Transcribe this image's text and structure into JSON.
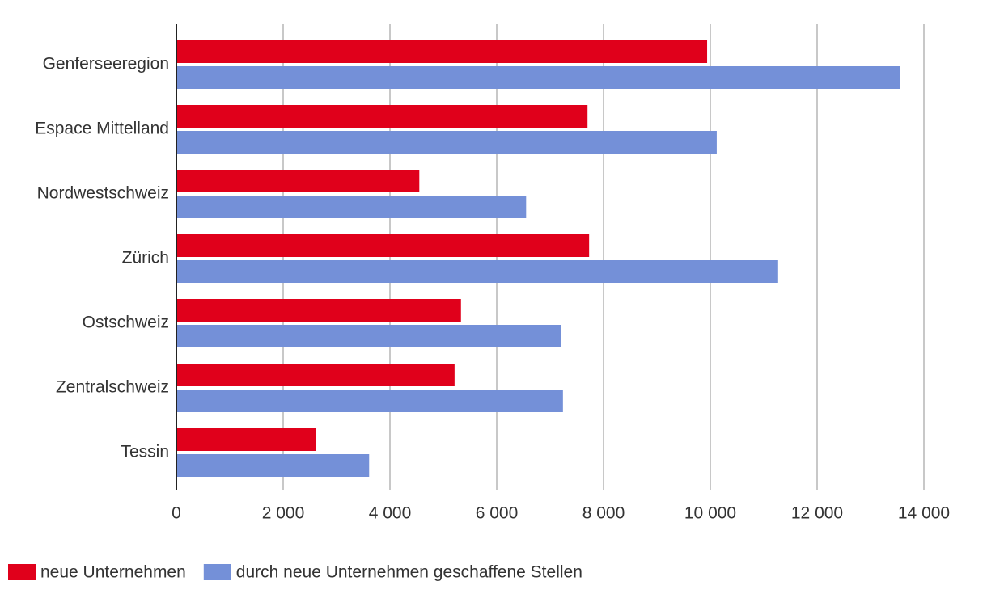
{
  "chart_data": {
    "type": "hbar",
    "categories": [
      "Genferseeregion",
      "Espace Mittelland",
      "Nordwestschweiz",
      "Zürich",
      "Ostschweiz",
      "Zentralschweiz",
      "Tessin"
    ],
    "series": [
      {
        "name": "neue Unternehmen",
        "color": "#e0001b",
        "values": [
          9940,
          7700,
          4550,
          7730,
          5330,
          5210,
          2610
        ]
      },
      {
        "name": "durch neue Unternehmen geschaffene Stellen",
        "color": "#7490d8",
        "values": [
          13550,
          10120,
          6550,
          11270,
          7210,
          7240,
          3610
        ]
      }
    ],
    "xlim": [
      0,
      14000
    ],
    "xticks": [
      0,
      {
        "value": 2000,
        "label": "2 000"
      },
      {
        "value": 4000,
        "label": "4 000"
      },
      {
        "value": 6000,
        "label": "6 000"
      },
      {
        "value": 8000,
        "label": "8 000"
      },
      {
        "value": 10000,
        "label": "10 000"
      },
      {
        "value": 12000,
        "label": "12 000"
      },
      {
        "value": 14000,
        "label": "14 000"
      }
    ],
    "grid": true,
    "legend": "bottom-left"
  }
}
